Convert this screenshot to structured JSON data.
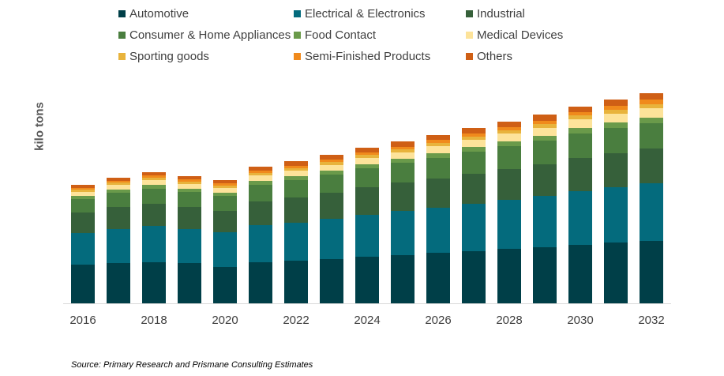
{
  "chart_data": {
    "type": "bar",
    "stacked": true,
    "title": "",
    "xlabel": "",
    "ylabel": "kilo tons",
    "legend_position": "top",
    "grid": false,
    "categories": [
      "2016",
      "2017",
      "2018",
      "2019",
      "2020",
      "2021",
      "2022",
      "2023",
      "2024",
      "2025",
      "2026",
      "2027",
      "2028",
      "2029",
      "2030",
      "2031",
      "2032"
    ],
    "x_tick_labels": [
      "2016",
      "2018",
      "2020",
      "2022",
      "2024",
      "2026",
      "2028",
      "2030",
      "2032"
    ],
    "series": [
      {
        "name": "Automotive",
        "color": "#003f48",
        "values": [
          49,
          51,
          52,
          51,
          46,
          52,
          54,
          56,
          59,
          61,
          64,
          66,
          69,
          71,
          74,
          77,
          79
        ]
      },
      {
        "name": "Electrical & Electronics",
        "color": "#046b7d",
        "values": [
          40,
          43,
          46,
          43,
          44,
          47,
          48,
          51,
          53,
          56,
          57,
          60,
          62,
          65,
          68,
          70,
          73
        ]
      },
      {
        "name": "Industrial",
        "color": "#36603a",
        "values": [
          26,
          28,
          28,
          28,
          27,
          30,
          32,
          33,
          35,
          36,
          37,
          38,
          39,
          40,
          42,
          43,
          44
        ]
      },
      {
        "name": "Consumer & Home Appliances",
        "color": "#4a7e3f",
        "values": [
          17,
          18,
          19,
          19,
          19,
          21,
          22,
          23,
          24,
          25,
          26,
          28,
          29,
          30,
          31,
          32,
          32
        ]
      },
      {
        "name": "Food Contact",
        "color": "#6a9a4a",
        "values": [
          4,
          4,
          5,
          4,
          4,
          5,
          5,
          5,
          5,
          5,
          6,
          6,
          6,
          6,
          7,
          7,
          7
        ]
      },
      {
        "name": "Medical Devices",
        "color": "#fde39a",
        "values": [
          5,
          6,
          6,
          6,
          6,
          7,
          7,
          7,
          8,
          8,
          9,
          9,
          10,
          10,
          11,
          11,
          12
        ]
      },
      {
        "name": "Sporting goods",
        "color": "#e8b33c",
        "values": [
          3,
          3,
          3,
          3,
          3,
          3,
          3,
          4,
          4,
          4,
          4,
          4,
          4,
          5,
          5,
          5,
          5
        ]
      },
      {
        "name": "Semi-Finished Products",
        "color": "#f08a1c",
        "values": [
          2,
          2,
          3,
          3,
          3,
          3,
          3,
          3,
          3,
          3,
          4,
          4,
          4,
          4,
          4,
          5,
          6
        ]
      },
      {
        "name": "Others",
        "color": "#cf5f15",
        "values": [
          4,
          4,
          4,
          4,
          4,
          5,
          6,
          6,
          6,
          7,
          6,
          7,
          7,
          8,
          7,
          8,
          8
        ]
      }
    ]
  },
  "source": "Source: Primary Research and Prismane Consulting Estimates"
}
